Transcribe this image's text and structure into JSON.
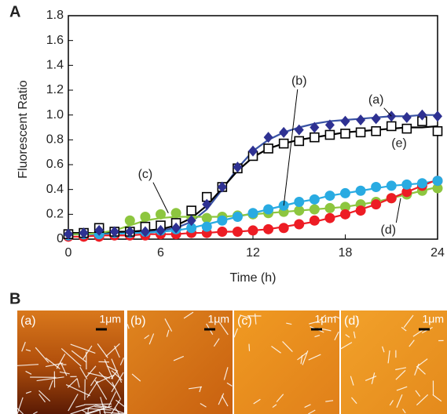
{
  "panel_a_label": "A",
  "chart_data": {
    "type": "scatter",
    "xlabel": "Time (h)",
    "ylabel": "Fluorescent Ratio",
    "x": [
      0,
      1,
      2,
      3,
      4,
      5,
      6,
      7,
      8,
      9,
      10,
      11,
      12,
      13,
      14,
      15,
      16,
      17,
      18,
      19,
      20,
      21,
      22,
      23,
      24
    ],
    "xlim": [
      0,
      24
    ],
    "xticks": [
      0,
      6,
      12,
      18,
      24
    ],
    "ylim": [
      0,
      1.8
    ],
    "yticks": [
      0,
      0.2,
      0.4,
      0.6,
      0.8,
      {
        "value": 1,
        "label": "1.0"
      },
      1.2,
      1.4,
      1.6,
      1.8
    ],
    "series": [
      {
        "name": "(a)",
        "color": "#2e3192",
        "line_color": "#3953a4",
        "marker": "diamond",
        "values": [
          0.04,
          0.05,
          0.07,
          0.06,
          0.06,
          0.06,
          0.07,
          0.09,
          0.15,
          0.28,
          0.42,
          0.58,
          0.71,
          0.82,
          0.86,
          0.88,
          0.9,
          0.92,
          0.95,
          0.96,
          0.97,
          0.99,
          0.98,
          1.0,
          0.99
        ],
        "fit": [
          0.04,
          0.04,
          0.04,
          0.05,
          0.05,
          0.06,
          0.07,
          0.09,
          0.14,
          0.24,
          0.4,
          0.57,
          0.71,
          0.8,
          0.86,
          0.9,
          0.93,
          0.95,
          0.96,
          0.97,
          0.98,
          0.99,
          0.99,
          1.0,
          1.0
        ]
      },
      {
        "name": "(e)",
        "color": "#000000",
        "line_color": "#000000",
        "marker": "square",
        "values": [
          0.04,
          0.05,
          0.09,
          0.06,
          0.06,
          0.1,
          0.11,
          0.13,
          0.23,
          0.34,
          0.42,
          0.57,
          0.67,
          0.73,
          0.77,
          0.79,
          0.82,
          0.84,
          0.85,
          0.86,
          0.87,
          0.91,
          0.89,
          0.95,
          0.87
        ],
        "fit": [
          0.05,
          0.05,
          0.05,
          0.06,
          0.06,
          0.07,
          0.08,
          0.11,
          0.17,
          0.27,
          0.41,
          0.55,
          0.66,
          0.73,
          0.77,
          0.8,
          0.82,
          0.84,
          0.86,
          0.87,
          0.88,
          0.89,
          0.9,
          0.9,
          0.91
        ]
      },
      {
        "name": "(b)",
        "color": "#29abe2",
        "line_color": "#29abe2",
        "marker": "circle",
        "values": [
          0.03,
          0.04,
          0.04,
          0.05,
          0.05,
          0.06,
          0.07,
          0.08,
          0.09,
          0.1,
          0.15,
          0.18,
          0.21,
          0.24,
          0.27,
          0.3,
          0.32,
          0.35,
          0.37,
          0.39,
          0.42,
          0.43,
          0.44,
          0.45,
          0.47
        ],
        "fit": [
          0.04,
          0.04,
          0.04,
          0.04,
          0.05,
          0.05,
          0.06,
          0.07,
          0.09,
          0.12,
          0.15,
          0.18,
          0.21,
          0.24,
          0.27,
          0.3,
          0.32,
          0.35,
          0.37,
          0.39,
          0.41,
          0.43,
          0.44,
          0.45,
          0.47
        ]
      },
      {
        "name": "(c)",
        "color": "#8dc63f",
        "line_color": "#8dc63f",
        "marker": "circle",
        "values": [
          0.03,
          0.03,
          0.03,
          0.04,
          0.15,
          0.18,
          0.2,
          0.21,
          0.18,
          0.17,
          0.18,
          0.19,
          0.2,
          0.21,
          0.22,
          0.23,
          0.24,
          0.25,
          0.26,
          0.28,
          0.3,
          0.33,
          0.36,
          0.39,
          0.41
        ],
        "fit": [
          0.04,
          0.04,
          0.05,
          0.07,
          0.11,
          0.15,
          0.17,
          0.18,
          0.18,
          0.18,
          0.18,
          0.19,
          0.2,
          0.21,
          0.22,
          0.23,
          0.24,
          0.25,
          0.26,
          0.28,
          0.3,
          0.33,
          0.36,
          0.39,
          0.42
        ]
      },
      {
        "name": "(d)",
        "color": "#ed1c24",
        "line_color": "#ed1c24",
        "marker": "circle",
        "values": [
          0.02,
          0.02,
          0.02,
          0.03,
          0.03,
          0.03,
          0.04,
          0.04,
          0.05,
          0.05,
          0.06,
          0.06,
          0.07,
          0.08,
          0.09,
          0.12,
          0.15,
          0.17,
          0.2,
          0.23,
          0.28,
          0.33,
          0.38,
          0.43,
          0.47
        ],
        "fit": [
          0.02,
          0.02,
          0.03,
          0.03,
          0.03,
          0.04,
          0.04,
          0.04,
          0.05,
          0.05,
          0.06,
          0.06,
          0.07,
          0.08,
          0.1,
          0.12,
          0.14,
          0.17,
          0.2,
          0.24,
          0.28,
          0.33,
          0.38,
          0.43,
          0.48
        ]
      }
    ]
  },
  "panel_b": {
    "label": "B",
    "images": [
      {
        "label": "(a)",
        "scale": "1μm"
      },
      {
        "label": "(b)",
        "scale": "1μm"
      },
      {
        "label": "(c)",
        "scale": "1μm"
      },
      {
        "label": "(d)",
        "scale": "1μm"
      }
    ]
  }
}
